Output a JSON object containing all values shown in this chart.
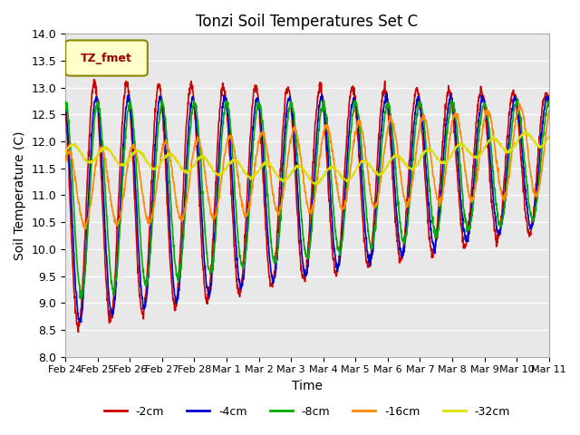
{
  "title": "Tonzi Soil Temperatures Set C",
  "xlabel": "Time",
  "ylabel": "Soil Temperature (C)",
  "ylim": [
    8.0,
    14.0
  ],
  "yticks": [
    8.0,
    8.5,
    9.0,
    9.5,
    10.0,
    10.5,
    11.0,
    11.5,
    12.0,
    12.5,
    13.0,
    13.5,
    14.0
  ],
  "xtick_labels": [
    "Feb 24",
    "Feb 25",
    "Feb 26",
    "Feb 27",
    "Feb 28",
    "Mar 1",
    "Mar 2",
    "Mar 3",
    "Mar 4",
    "Mar 5",
    "Mar 6",
    "Mar 7",
    "Mar 8",
    "Mar 9",
    "Mar 10",
    "Mar 11"
  ],
  "colors": {
    "-2cm": "#cc0000",
    "-4cm": "#0000cc",
    "-8cm": "#00aa00",
    "-16cm": "#ff8800",
    "-32cm": "#dddd00"
  },
  "legend_label": "TZ_fmet",
  "legend_box_color": "#ffffcc",
  "legend_text_color": "#990000",
  "background_color": "#e8e8e8",
  "n_points": 1680,
  "days": 16
}
